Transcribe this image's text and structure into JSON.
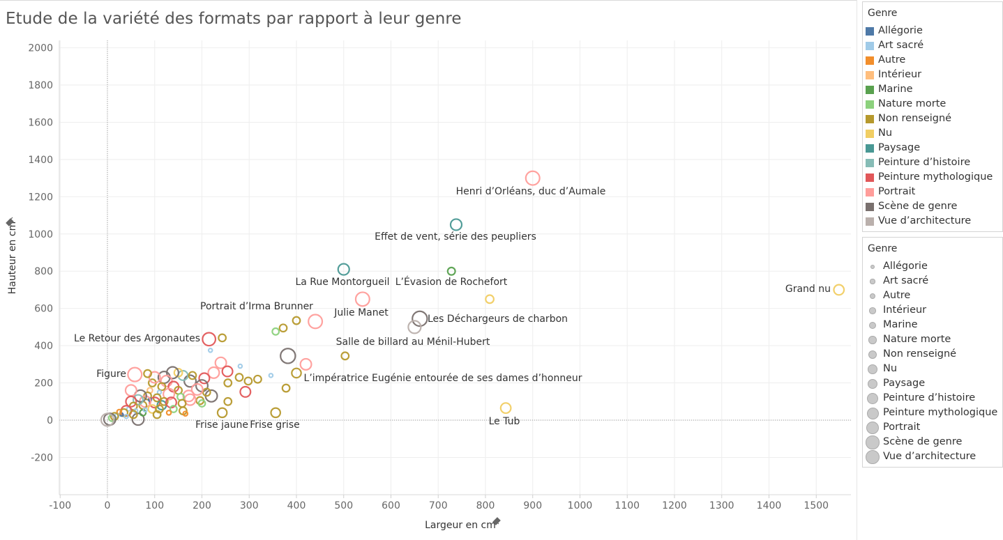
{
  "title": "Etude de la variété des formats par rapport à leur genre",
  "legend_color": {
    "title": "Genre",
    "items": [
      {
        "label": "Allégorie",
        "color": "#4e79a7"
      },
      {
        "label": "Art sacré",
        "color": "#a0cbe8"
      },
      {
        "label": "Autre",
        "color": "#f28e2b"
      },
      {
        "label": "Intérieur",
        "color": "#ffbe7d"
      },
      {
        "label": "Marine",
        "color": "#59a14f"
      },
      {
        "label": "Nature morte",
        "color": "#8cd17d"
      },
      {
        "label": "Non renseigné",
        "color": "#b6992d"
      },
      {
        "label": "Nu",
        "color": "#f1ce63"
      },
      {
        "label": "Paysage",
        "color": "#499894"
      },
      {
        "label": "Peinture d’histoire",
        "color": "#86bcb6"
      },
      {
        "label": "Peinture mythologique",
        "color": "#e15759"
      },
      {
        "label": "Portrait",
        "color": "#ff9d9a"
      },
      {
        "label": "Scène de genre",
        "color": "#79706e"
      },
      {
        "label": "Vue d’architecture",
        "color": "#bab0ac"
      }
    ]
  },
  "legend_size": {
    "title": "Genre",
    "items": [
      "Allégorie",
      "Art sacré",
      "Autre",
      "Intérieur",
      "Marine",
      "Nature morte",
      "Non renseigné",
      "Nu",
      "Paysage",
      "Peinture d’histoire",
      "Peinture mythologique",
      "Portrait",
      "Scène de genre",
      "Vue d’architecture"
    ]
  },
  "chart_data": {
    "type": "scatter",
    "xlabel": "Largeur en cm",
    "ylabel": "Hauteur en cm",
    "xlim": [
      -100,
      1580
    ],
    "ylim": [
      -300,
      2030
    ],
    "xticks": [
      -100,
      0,
      100,
      200,
      300,
      400,
      500,
      600,
      700,
      800,
      900,
      1000,
      1100,
      1200,
      1300,
      1400,
      1500
    ],
    "yticks": [
      -200,
      0,
      200,
      400,
      600,
      800,
      1000,
      1200,
      1400,
      1600,
      1800,
      2000
    ],
    "grid": true,
    "legend_placement": "right",
    "points": [
      {
        "x": 900,
        "y": 1300,
        "genre": "Portrait",
        "label": "Henri d’Orléans, duc d’Aumale"
      },
      {
        "x": 738,
        "y": 1050,
        "genre": "Paysage",
        "label": "Effet de vent, série des peupliers"
      },
      {
        "x": 500,
        "y": 810,
        "genre": "Paysage",
        "label": "La Rue Montorgueil"
      },
      {
        "x": 728,
        "y": 800,
        "genre": "Marine",
        "label": "L’Évasion de Rochefort"
      },
      {
        "x": 1548,
        "y": 700,
        "genre": "Nu",
        "label": "Grand nu"
      },
      {
        "x": 809,
        "y": 650,
        "genre": "Nu",
        "label": ""
      },
      {
        "x": 540,
        "y": 650,
        "genre": "Portrait",
        "label": "Julie Manet"
      },
      {
        "x": 440,
        "y": 530,
        "genre": "Portrait",
        "label": "Portrait d’Irma Brunner"
      },
      {
        "x": 661,
        "y": 545,
        "genre": "Scène de genre",
        "label": "Les Déchargeurs de charbon"
      },
      {
        "x": 650,
        "y": 500,
        "genre": "Vue d’architecture",
        "label": ""
      },
      {
        "x": 215,
        "y": 435,
        "genre": "Peinture mythologique",
        "label": "Le Retour des Argonautes"
      },
      {
        "x": 243,
        "y": 442,
        "genre": "Non renseigné",
        "label": ""
      },
      {
        "x": 400,
        "y": 535,
        "genre": "Non renseigné",
        "label": ""
      },
      {
        "x": 372,
        "y": 495,
        "genre": "Non renseigné",
        "label": ""
      },
      {
        "x": 356,
        "y": 476,
        "genre": "Nature morte",
        "label": ""
      },
      {
        "x": 382,
        "y": 345,
        "genre": "Scène de genre",
        "label": "Salle de billard au Ménil-Hubert"
      },
      {
        "x": 503,
        "y": 345,
        "genre": "Non renseigné",
        "label": ""
      },
      {
        "x": 420,
        "y": 300,
        "genre": "Portrait",
        "label": ""
      },
      {
        "x": 400,
        "y": 253,
        "genre": "Non renseigné",
        "label": "L’impératrice Eugénie entourée de ses dames d’honneur"
      },
      {
        "x": 58,
        "y": 245,
        "genre": "Portrait",
        "label": "Figure"
      },
      {
        "x": 240,
        "y": 308,
        "genre": "Portrait",
        "label": ""
      },
      {
        "x": 254,
        "y": 262,
        "genre": "Peinture mythologique",
        "label": ""
      },
      {
        "x": 292,
        "y": 152,
        "genre": "Peinture mythologique",
        "label": ""
      },
      {
        "x": 220,
        "y": 130,
        "genre": "Scène de genre",
        "label": ""
      },
      {
        "x": 243,
        "y": 40,
        "genre": "Non renseigné",
        "label": "Frise jaune"
      },
      {
        "x": 356,
        "y": 40,
        "genre": "Non renseigné",
        "label": "Frise grise"
      },
      {
        "x": 843,
        "y": 65,
        "genre": "Nu",
        "label": "Le Tub"
      },
      {
        "x": 378,
        "y": 172,
        "genre": "Non renseigné",
        "label": ""
      },
      {
        "x": 318,
        "y": 220,
        "genre": "Non renseigné",
        "label": ""
      },
      {
        "x": 298,
        "y": 210,
        "genre": "Non renseigné",
        "label": ""
      },
      {
        "x": 279,
        "y": 230,
        "genre": "Non renseigné",
        "label": ""
      },
      {
        "x": 255,
        "y": 200,
        "genre": "Non renseigné",
        "label": ""
      },
      {
        "x": 255,
        "y": 100,
        "genre": "Non renseigné",
        "label": ""
      },
      {
        "x": 346,
        "y": 240,
        "genre": "Art sacré",
        "label": ""
      },
      {
        "x": 281,
        "y": 290,
        "genre": "Art sacré",
        "label": ""
      },
      {
        "x": 218,
        "y": 375,
        "genre": "Art sacré",
        "label": ""
      },
      {
        "x": 225,
        "y": 255,
        "genre": "Portrait",
        "label": ""
      },
      {
        "x": 205,
        "y": 225,
        "genre": "Peinture mythologique",
        "label": ""
      },
      {
        "x": 200,
        "y": 185,
        "genre": "Scène de genre",
        "label": ""
      },
      {
        "x": 210,
        "y": 150,
        "genre": "Non renseigné",
        "label": ""
      },
      {
        "x": 196,
        "y": 105,
        "genre": "Non renseigné",
        "label": ""
      },
      {
        "x": 200,
        "y": 90,
        "genre": "Nature morte",
        "label": ""
      },
      {
        "x": 175,
        "y": 210,
        "genre": "Scène de genre",
        "label": ""
      },
      {
        "x": 172,
        "y": 130,
        "genre": "Portrait",
        "label": ""
      },
      {
        "x": 175,
        "y": 110,
        "genre": "Portrait",
        "label": ""
      },
      {
        "x": 160,
        "y": 240,
        "genre": "Peinture d’histoire",
        "label": ""
      },
      {
        "x": 150,
        "y": 255,
        "genre": "Nu",
        "label": ""
      },
      {
        "x": 138,
        "y": 255,
        "genre": "Scène de genre",
        "label": ""
      },
      {
        "x": 120,
        "y": 230,
        "genre": "Scène de genre",
        "label": ""
      },
      {
        "x": 125,
        "y": 210,
        "genre": "Portrait",
        "label": ""
      },
      {
        "x": 140,
        "y": 180,
        "genre": "Peinture mythologique",
        "label": ""
      },
      {
        "x": 150,
        "y": 160,
        "genre": "Non renseigné",
        "label": ""
      },
      {
        "x": 155,
        "y": 125,
        "genre": "Nature morte",
        "label": ""
      },
      {
        "x": 158,
        "y": 90,
        "genre": "Non renseigné",
        "label": ""
      },
      {
        "x": 160,
        "y": 50,
        "genre": "Non renseigné",
        "label": ""
      },
      {
        "x": 165,
        "y": 35,
        "genre": "Autre",
        "label": ""
      },
      {
        "x": 130,
        "y": 140,
        "genre": "Portrait",
        "label": ""
      },
      {
        "x": 115,
        "y": 180,
        "genre": "Non renseigné",
        "label": ""
      },
      {
        "x": 110,
        "y": 150,
        "genre": "Art sacré",
        "label": ""
      },
      {
        "x": 105,
        "y": 120,
        "genre": "Non renseigné",
        "label": ""
      },
      {
        "x": 100,
        "y": 95,
        "genre": "Peinture mythologique",
        "label": ""
      },
      {
        "x": 95,
        "y": 200,
        "genre": "Non renseigné",
        "label": ""
      },
      {
        "x": 90,
        "y": 160,
        "genre": "Intérieur",
        "label": ""
      },
      {
        "x": 85,
        "y": 130,
        "genre": "Non renseigné",
        "label": ""
      },
      {
        "x": 90,
        "y": 110,
        "genre": "Allégorie",
        "label": ""
      },
      {
        "x": 80,
        "y": 100,
        "genre": "Portrait",
        "label": ""
      },
      {
        "x": 75,
        "y": 80,
        "genre": "Non renseigné",
        "label": ""
      },
      {
        "x": 70,
        "y": 130,
        "genre": "Scène de genre",
        "label": ""
      },
      {
        "x": 65,
        "y": 110,
        "genre": "Peinture d’histoire",
        "label": ""
      },
      {
        "x": 65,
        "y": 5,
        "genre": "Scène de genre",
        "label": ""
      },
      {
        "x": 50,
        "y": 160,
        "genre": "Portrait",
        "label": ""
      },
      {
        "x": 50,
        "y": 100,
        "genre": "Peinture mythologique",
        "label": ""
      },
      {
        "x": 55,
        "y": 75,
        "genre": "Non renseigné",
        "label": ""
      },
      {
        "x": 45,
        "y": 60,
        "genre": "Art sacré",
        "label": ""
      },
      {
        "x": 40,
        "y": 50,
        "genre": "Peinture mythologique",
        "label": ""
      },
      {
        "x": 35,
        "y": 40,
        "genre": "Non renseigné",
        "label": ""
      },
      {
        "x": 30,
        "y": 30,
        "genre": "Allégorie",
        "label": ""
      },
      {
        "x": 25,
        "y": 45,
        "genre": "Autre",
        "label": ""
      },
      {
        "x": 20,
        "y": 25,
        "genre": "Art sacré",
        "label": ""
      },
      {
        "x": 15,
        "y": 20,
        "genre": "Non renseigné",
        "label": ""
      },
      {
        "x": 10,
        "y": 12,
        "genre": "Nature morte",
        "label": ""
      },
      {
        "x": 5,
        "y": 5,
        "genre": "Scène de genre",
        "label": ""
      },
      {
        "x": 0,
        "y": 2,
        "genre": "Vue d’architecture",
        "label": ""
      },
      {
        "x": 60,
        "y": 50,
        "genre": "Art sacré",
        "label": ""
      },
      {
        "x": 75,
        "y": 40,
        "genre": "Marine",
        "label": ""
      },
      {
        "x": 95,
        "y": 60,
        "genre": "Nu",
        "label": ""
      },
      {
        "x": 115,
        "y": 80,
        "genre": "Paysage",
        "label": ""
      },
      {
        "x": 120,
        "y": 100,
        "genre": "Non renseigné",
        "label": ""
      },
      {
        "x": 135,
        "y": 95,
        "genre": "Peinture mythologique",
        "label": ""
      },
      {
        "x": 140,
        "y": 60,
        "genre": "Nature morte",
        "label": ""
      },
      {
        "x": 100,
        "y": 230,
        "genre": "Portrait",
        "label": ""
      },
      {
        "x": 85,
        "y": 250,
        "genre": "Non renseigné",
        "label": ""
      },
      {
        "x": 180,
        "y": 240,
        "genre": "Non renseigné",
        "label": ""
      },
      {
        "x": 190,
        "y": 165,
        "genre": "Portrait",
        "label": ""
      },
      {
        "x": 110,
        "y": 60,
        "genre": "Non renseigné",
        "label": ""
      },
      {
        "x": 130,
        "y": 40,
        "genre": "Autre",
        "label": ""
      },
      {
        "x": 40,
        "y": 20,
        "genre": "Art sacré",
        "label": ""
      },
      {
        "x": 55,
        "y": 30,
        "genre": "Non renseigné",
        "label": ""
      },
      {
        "x": 80,
        "y": 55,
        "genre": "Art sacré",
        "label": ""
      },
      {
        "x": 105,
        "y": 30,
        "genre": "Non renseigné",
        "label": ""
      }
    ]
  }
}
